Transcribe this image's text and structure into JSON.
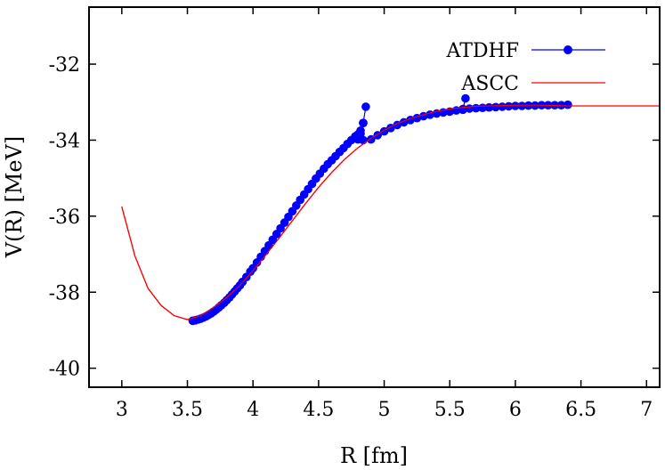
{
  "chart_data": {
    "type": "line",
    "title": "",
    "xlabel": "R [fm]",
    "ylabel": "V(R) [MeV]",
    "xlim": [
      2.75,
      7.1
    ],
    "ylim": [
      -40.5,
      -30.5
    ],
    "xticks": [
      3,
      3.5,
      4,
      4.5,
      5,
      5.5,
      6,
      6.5,
      7
    ],
    "xtick_labels": [
      "3",
      "3.5",
      "4",
      "4.5",
      "5",
      "5.5",
      "6",
      "6.5",
      "7"
    ],
    "yticks": [
      -40,
      -38,
      -36,
      -34,
      -32
    ],
    "ytick_labels": [
      "-40",
      "-38",
      "-36",
      "-34",
      "-32"
    ],
    "grid": false,
    "legend_position": "top-right",
    "series": [
      {
        "name": "ATDHF",
        "color": "#0000ff",
        "style": "line-with-markers",
        "x": [
          3.54,
          3.56,
          3.58,
          3.6,
          3.62,
          3.64,
          3.66,
          3.68,
          3.7,
          3.72,
          3.74,
          3.76,
          3.78,
          3.8,
          3.82,
          3.84,
          3.86,
          3.88,
          3.9,
          3.92,
          3.95,
          3.98,
          4.0,
          4.03,
          4.06,
          4.09,
          4.12,
          4.15,
          4.18,
          4.21,
          4.24,
          4.27,
          4.3,
          4.33,
          4.36,
          4.39,
          4.42,
          4.45,
          4.48,
          4.51,
          4.54,
          4.57,
          4.6,
          4.63,
          4.66,
          4.69,
          4.72,
          4.75,
          4.78,
          4.8,
          4.82,
          4.84,
          4.86,
          4.84,
          4.82,
          4.8,
          4.84,
          4.9,
          4.95,
          5.0,
          5.05,
          5.1,
          5.15,
          5.2,
          5.25,
          5.3,
          5.35,
          5.4,
          5.45,
          5.5,
          5.55,
          5.6,
          5.62,
          5.6,
          5.65,
          5.7,
          5.75,
          5.8,
          5.85,
          5.9,
          5.95,
          6.0,
          6.05,
          6.1,
          6.15,
          6.2,
          6.25,
          6.3,
          6.35,
          6.4
        ],
        "y": [
          -38.75,
          -38.74,
          -38.72,
          -38.7,
          -38.67,
          -38.64,
          -38.6,
          -38.56,
          -38.51,
          -38.46,
          -38.4,
          -38.34,
          -38.28,
          -38.21,
          -38.14,
          -38.06,
          -37.98,
          -37.9,
          -37.82,
          -37.73,
          -37.6,
          -37.46,
          -37.37,
          -37.22,
          -37.07,
          -36.92,
          -36.77,
          -36.62,
          -36.47,
          -36.32,
          -36.17,
          -36.02,
          -35.87,
          -35.72,
          -35.57,
          -35.43,
          -35.29,
          -35.15,
          -35.01,
          -34.88,
          -34.75,
          -34.63,
          -34.53,
          -34.42,
          -34.31,
          -34.21,
          -34.1,
          -34.0,
          -33.9,
          -33.85,
          -33.75,
          -33.55,
          -33.12,
          -33.55,
          -33.83,
          -33.98,
          -34.0,
          -33.98,
          -33.87,
          -33.77,
          -33.68,
          -33.6,
          -33.53,
          -33.47,
          -33.42,
          -33.37,
          -33.33,
          -33.3,
          -33.27,
          -33.25,
          -33.22,
          -33.2,
          -32.9,
          -33.18,
          -33.17,
          -33.16,
          -33.15,
          -33.14,
          -33.13,
          -33.12,
          -33.11,
          -33.1,
          -33.1,
          -33.09,
          -33.09,
          -33.08,
          -33.08,
          -33.08,
          -33.08,
          -33.07
        ]
      },
      {
        "name": "ASCC",
        "color": "#ff0000",
        "style": "line",
        "x": [
          3.0,
          3.1,
          3.2,
          3.3,
          3.4,
          3.5,
          3.6,
          3.7,
          3.8,
          3.9,
          4.0,
          4.1,
          4.2,
          4.3,
          4.4,
          4.5,
          4.6,
          4.7,
          4.8,
          4.9,
          5.0,
          5.1,
          5.2,
          5.3,
          5.4,
          5.5,
          5.6,
          5.7,
          5.8,
          5.9,
          6.0,
          6.1,
          6.2,
          6.3,
          6.4,
          6.5,
          6.6,
          6.7,
          6.8,
          6.9,
          7.0,
          7.1
        ],
        "y": [
          -35.75,
          -37.05,
          -37.9,
          -38.35,
          -38.62,
          -38.72,
          -38.62,
          -38.4,
          -38.14,
          -37.82,
          -37.43,
          -37.01,
          -36.57,
          -36.12,
          -35.67,
          -35.24,
          -34.85,
          -34.5,
          -34.2,
          -33.95,
          -33.74,
          -33.56,
          -33.43,
          -33.33,
          -33.24,
          -33.18,
          -33.14,
          -33.11,
          -33.1,
          -33.09,
          -33.08,
          -33.08,
          -33.08,
          -33.09,
          -33.1,
          -33.1,
          -33.1,
          -33.1,
          -33.1,
          -33.1,
          -33.1,
          -33.1
        ]
      }
    ]
  }
}
